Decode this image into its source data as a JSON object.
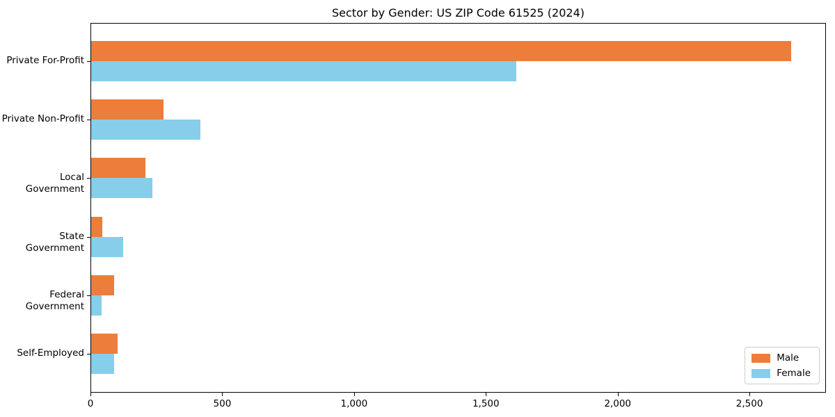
{
  "title": "Sector by Gender: US ZIP Code 61525 (2024)",
  "colors": {
    "male": "#ed7d3a",
    "female": "#87ceeb",
    "axis": "#000000",
    "background": "#ffffff",
    "legend_border": "#cccccc"
  },
  "chart_data": {
    "type": "bar",
    "orientation": "horizontal",
    "title": "Sector by Gender: US ZIP Code 61525 (2024)",
    "categories": [
      "Private For-Profit",
      "Private Non-Profit",
      "Local Government",
      "State Government",
      "Federal Government",
      "Self-Employed"
    ],
    "series": [
      {
        "name": "Male",
        "color": "#ed7d3a",
        "values": [
          2658,
          277,
          208,
          45,
          90,
          103
        ]
      },
      {
        "name": "Female",
        "color": "#87ceeb",
        "values": [
          1615,
          417,
          235,
          124,
          42,
          90
        ]
      }
    ],
    "xlabel": "",
    "ylabel": "",
    "xlim": [
      0,
      2790
    ],
    "xticks": [
      0,
      500,
      1000,
      1500,
      2000,
      2500
    ],
    "xtick_labels": [
      "0",
      "500",
      "1,000",
      "1,500",
      "2,000",
      "2,500"
    ],
    "grid": false,
    "legend": {
      "position": "lower right",
      "entries": [
        "Male",
        "Female"
      ]
    }
  }
}
